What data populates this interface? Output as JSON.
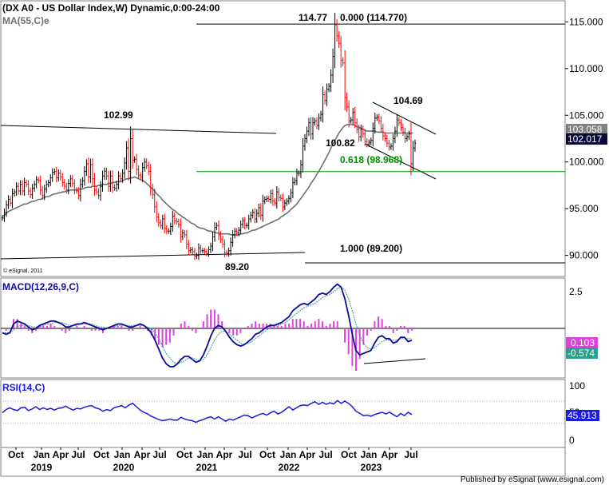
{
  "chart_data": {
    "type": "line",
    "main": {
      "title": "(DX A0 - US Dollar Index,W) Dynamic,0:00-24:00",
      "ma_label": "MA(55,C)e",
      "copyright": "© eSignal, 2011",
      "ylim": [
        88.0,
        117.0
      ],
      "yticks": [
        90,
        95,
        100,
        105,
        110,
        115
      ],
      "ytick_labels": [
        "90.000",
        "95.000",
        "100.000",
        "105.000",
        "110.000",
        "115.000"
      ],
      "price_box_ma": "103.058",
      "price_box_last": "102.017",
      "close": [
        94.0,
        94.6,
        95.4,
        96.0,
        95.6,
        96.6,
        96.8,
        97.4,
        96.9,
        97.6,
        96.9,
        97.8,
        97.6,
        96.9,
        96.5,
        97.2,
        97.6,
        98.1,
        98.0,
        97.0,
        96.4,
        97.1,
        97.6,
        97.8,
        98.3,
        98.9,
        99.0,
        98.3,
        98.8,
        98.4,
        97.8,
        97.4,
        97.0,
        97.7,
        98.2,
        97.7,
        97.0,
        96.9,
        96.4,
        97.6,
        98.0,
        99.0,
        99.8,
        98.4,
        99.7,
        98.2,
        97.0,
        96.8,
        96.4,
        97.4,
        98.5,
        99.0,
        98.5,
        97.4,
        98.5,
        97.3,
        97.2,
        97.6,
        98.5,
        98.2,
        98.8,
        99.9,
        101.5,
        99.0,
        102.5,
        100.2,
        100.3,
        99.2,
        98.6,
        98.4,
        99.4,
        100.0,
        99.6,
        99.0,
        97.2,
        96.5,
        95.2,
        94.1,
        93.5,
        93.2,
        93.9,
        92.9,
        92.6,
        92.6,
        93.1,
        94.2,
        93.7,
        93.6,
        93.3,
        92.0,
        92.4,
        92.2,
        91.2,
        90.5,
        90.6,
        90.4,
        89.9,
        90.0,
        90.8,
        90.5,
        90.5,
        90.4,
        90.2,
        90.6,
        91.0,
        92.0,
        93.0,
        93.2,
        92.2,
        91.7,
        91.2,
        90.3,
        90.2,
        90.5,
        91.4,
        92.2,
        92.6,
        92.4,
        92.7,
        93.3,
        93.7,
        93.2,
        93.2,
        93.9,
        94.3,
        94.6,
        93.9,
        94.5,
        95.1,
        94.3,
        95.8,
        96.0,
        96.1,
        96.0,
        96.6,
        95.8,
        95.6,
        96.8,
        96.2,
        96.1,
        95.2,
        95.6,
        95.8,
        96.1,
        96.7,
        97.8,
        98.0,
        98.8,
        98.8,
        99.7,
        101.7,
        102.5,
        103.3,
        104.2,
        103.0,
        104.2,
        104.4,
        103.9,
        104.7,
        105.1,
        107.2,
        106.6,
        107.8,
        108.1,
        109.3,
        111.3,
        114.7,
        113.5,
        112.7,
        110.9,
        110.6,
        106.9,
        105.9,
        104.4,
        104.5,
        105.3,
        104.2,
        103.5,
        102.7,
        103.5,
        103.0,
        102.2,
        101.9,
        102.1,
        102.3,
        103.6,
        104.7,
        104.8,
        104.4,
        103.6,
        102.8,
        102.5,
        102.0,
        101.6,
        101.7,
        102.5,
        103.3,
        104.5,
        104.2,
        103.7,
        103.2,
        102.5,
        102.7,
        103.0,
        99.8,
        101.5,
        102.0
      ],
      "ma55": [
        94.2,
        94.3,
        94.5,
        94.7,
        94.8,
        94.9,
        95.0,
        95.1,
        95.2,
        95.3,
        95.4,
        95.5,
        95.5,
        95.6,
        95.7,
        95.8,
        95.8,
        95.9,
        96.0,
        96.0,
        96.1,
        96.2,
        96.3,
        96.3,
        96.4,
        96.5,
        96.6,
        96.6,
        96.7,
        96.7,
        96.8,
        96.8,
        96.9,
        96.9,
        97.0,
        97.0,
        97.0,
        97.0,
        97.1,
        97.1,
        97.1,
        97.2,
        97.3,
        97.3,
        97.3,
        97.4,
        97.4,
        97.4,
        97.5,
        97.5,
        97.6,
        97.6,
        97.6,
        97.7,
        97.7,
        97.8,
        97.8,
        97.9,
        97.9,
        97.9,
        98.0,
        98.1,
        98.2,
        98.2,
        98.3,
        98.3,
        98.4,
        98.3,
        98.2,
        98.1,
        98.0,
        97.9,
        97.7,
        97.5,
        97.3,
        97.1,
        96.9,
        96.6,
        96.4,
        96.2,
        95.9,
        95.7,
        95.5,
        95.3,
        95.1,
        94.9,
        94.8,
        94.6,
        94.4,
        94.3,
        94.1,
        94.0,
        93.8,
        93.7,
        93.5,
        93.4,
        93.3,
        93.1,
        93.0,
        92.9,
        92.9,
        92.8,
        92.7,
        92.6,
        92.6,
        92.5,
        92.5,
        92.4,
        92.4,
        92.3,
        92.3,
        92.3,
        92.3,
        92.3,
        92.2,
        92.2,
        92.2,
        92.2,
        92.2,
        92.3,
        92.3,
        92.4,
        92.4,
        92.5,
        92.6,
        92.7,
        92.7,
        92.8,
        92.9,
        93.0,
        93.1,
        93.2,
        93.3,
        93.4,
        93.5,
        93.6,
        93.7,
        93.8,
        93.9,
        94.1,
        94.2,
        94.4,
        94.5,
        94.7,
        94.9,
        95.1,
        95.3,
        95.5,
        95.8,
        96.1,
        96.4,
        96.7,
        97.0,
        97.3,
        97.7,
        98.0,
        98.3,
        98.7,
        99.0,
        99.4,
        99.8,
        100.2,
        100.6,
        101.0,
        101.5,
        101.9,
        102.3,
        102.7,
        103.1,
        103.4,
        103.7,
        103.9,
        104.0,
        104.0,
        104.0,
        104.0,
        103.9,
        103.8,
        103.7,
        103.6,
        103.5,
        103.4,
        103.3,
        103.3,
        103.3,
        103.3,
        103.3,
        103.2,
        103.2,
        103.2,
        103.2,
        103.1,
        103.1,
        103.1,
        103.1,
        103.1,
        103.1,
        103.1,
        103.1,
        103.1,
        103.1,
        103.1,
        103.1,
        103.1,
        103.1,
        103.1
      ],
      "labels": {
        "peak": "114.77",
        "fib0": "0.000 (114.770)",
        "high": "104.69",
        "low": "100.82",
        "fib618": "0.618 (98.968)",
        "high2020": "102.99",
        "fib1": "1.000 (89.200)",
        "low2021": "89.20"
      },
      "levels": {
        "fib0": 114.77,
        "fib618": 98.968,
        "fib1": 89.2
      }
    },
    "macd": {
      "label": "MACD(12,26,9,C)",
      "ylim": [
        -3.2,
        3.2
      ],
      "ytick_labels": [
        "2.5"
      ],
      "yticks": [
        2.5
      ],
      "box_signal": "0.103",
      "box_macd": "-0.574",
      "macd": [
        -0.3,
        -0.4,
        -0.3,
        0.3,
        0.5,
        0.4,
        0.3,
        0.1,
        -0.1,
        0.0,
        0.2,
        0.3,
        0.4,
        0.5,
        0.5,
        0.4,
        0.3,
        0.1,
        0.1,
        0.2,
        0.3,
        0.3,
        0.4,
        0.3,
        0.2,
        0.1,
        0.0,
        -0.1,
        0.0,
        0.1,
        0.2,
        0.3,
        0.3,
        0.2,
        0.1,
        0.1,
        0.2,
        0.3,
        0.2,
        0.0,
        -0.3,
        -0.8,
        -1.4,
        -2.0,
        -2.4,
        -2.6,
        -2.6,
        -2.4,
        -2.1,
        -1.9,
        -1.9,
        -2.1,
        -2.3,
        -2.2,
        -1.8,
        -1.2,
        -0.5,
        0.0,
        0.2,
        0.1,
        -0.2,
        -0.6,
        -0.9,
        -1.1,
        -1.2,
        -1.1,
        -0.9,
        -0.7,
        -0.4,
        -0.3,
        -0.1,
        0.1,
        0.2,
        0.2,
        0.3,
        0.4,
        0.6,
        0.8,
        1.2,
        1.4,
        1.6,
        1.7,
        1.6,
        1.8,
        2.0,
        2.3,
        2.4,
        2.3,
        2.5,
        2.8,
        3.0,
        2.8,
        2.0,
        0.9,
        -0.4,
        -1.5,
        -1.8,
        -1.7,
        -1.6,
        -1.5,
        -1.0,
        -0.6,
        -0.5,
        -0.7,
        -0.7,
        -1.0,
        -0.9,
        -0.6,
        -0.6,
        -0.9,
        -0.8
      ],
      "signal": [
        -0.3,
        -0.3,
        -0.3,
        -0.1,
        0.1,
        0.2,
        0.2,
        0.2,
        0.1,
        0.1,
        0.1,
        0.2,
        0.3,
        0.3,
        0.4,
        0.4,
        0.4,
        0.3,
        0.2,
        0.2,
        0.2,
        0.3,
        0.3,
        0.3,
        0.3,
        0.2,
        0.1,
        0.1,
        0.0,
        0.1,
        0.1,
        0.2,
        0.2,
        0.2,
        0.2,
        0.2,
        0.2,
        0.2,
        0.2,
        0.1,
        0.0,
        -0.3,
        -0.7,
        -1.2,
        -1.7,
        -2.0,
        -2.3,
        -2.4,
        -2.3,
        -2.2,
        -2.0,
        -2.0,
        -2.1,
        -2.2,
        -2.1,
        -1.8,
        -1.3,
        -0.8,
        -0.4,
        -0.2,
        -0.2,
        -0.4,
        -0.6,
        -0.8,
        -1.0,
        -1.1,
        -1.0,
        -0.9,
        -0.7,
        -0.5,
        -0.3,
        -0.1,
        0.0,
        0.1,
        0.2,
        0.3,
        0.4,
        0.6,
        0.8,
        1.0,
        1.2,
        1.4,
        1.5,
        1.6,
        1.7,
        1.9,
        2.1,
        2.2,
        2.3,
        2.5,
        2.7,
        2.8,
        2.6,
        2.0,
        1.2,
        0.3,
        -0.5,
        -1.0,
        -1.3,
        -1.4,
        -1.3,
        -1.1,
        -0.9,
        -0.8,
        -0.8,
        -0.8,
        -0.8,
        -0.7,
        -0.7,
        -0.7,
        -0.7
      ]
    },
    "rsi": {
      "label": "RSI(14,C)",
      "ylim": [
        0,
        100
      ],
      "yticks": [
        100,
        50,
        0
      ],
      "ytick_labels": [
        "100",
        "50",
        "0"
      ],
      "box_value": "45.913",
      "values": [
        49,
        55,
        58,
        55,
        53,
        58,
        59,
        53,
        56,
        60,
        55,
        58,
        55,
        57,
        54,
        57,
        58,
        61,
        57,
        54,
        57,
        56,
        59,
        61,
        62,
        58,
        56,
        52,
        55,
        53,
        58,
        60,
        62,
        58,
        63,
        66,
        60,
        54,
        50,
        47,
        43,
        40,
        37,
        35,
        36,
        38,
        36,
        36,
        41,
        38,
        36,
        35,
        32,
        35,
        37,
        40,
        42,
        38,
        42,
        38,
        34,
        38,
        36,
        39,
        42,
        45,
        44,
        40,
        43,
        46,
        48,
        45,
        49,
        52,
        47,
        50,
        55,
        60,
        54,
        58,
        62,
        63,
        62,
        66,
        69,
        64,
        68,
        64,
        67,
        65,
        71,
        66,
        70,
        66,
        60,
        52,
        48,
        44,
        45,
        43,
        46,
        48,
        50,
        47,
        50,
        46,
        42,
        48,
        44,
        50,
        46
      ]
    },
    "x_axis": {
      "months": [
        "Oct",
        "Jan",
        "Apr",
        "Jul",
        "Oct",
        "Jan",
        "Apr",
        "Jul",
        "Oct",
        "Jan",
        "Apr",
        "Jul",
        "Oct",
        "Jan",
        "Apr",
        "Jul",
        "Oct",
        "Jan",
        "Apr",
        "Jul"
      ],
      "years": [
        "2019",
        "2020",
        "2021",
        "2022",
        "2023"
      ]
    }
  },
  "footer": "Published by eSignal (www.esignal.com)",
  "colors": {
    "up": "#000000",
    "down": "#ff0000",
    "ma": "#707070",
    "macd": "#0a0aa0",
    "signal": "#2aa08a",
    "hist": "#e040e0",
    "rsi": "#1a1ae6",
    "fib": "#009000"
  }
}
